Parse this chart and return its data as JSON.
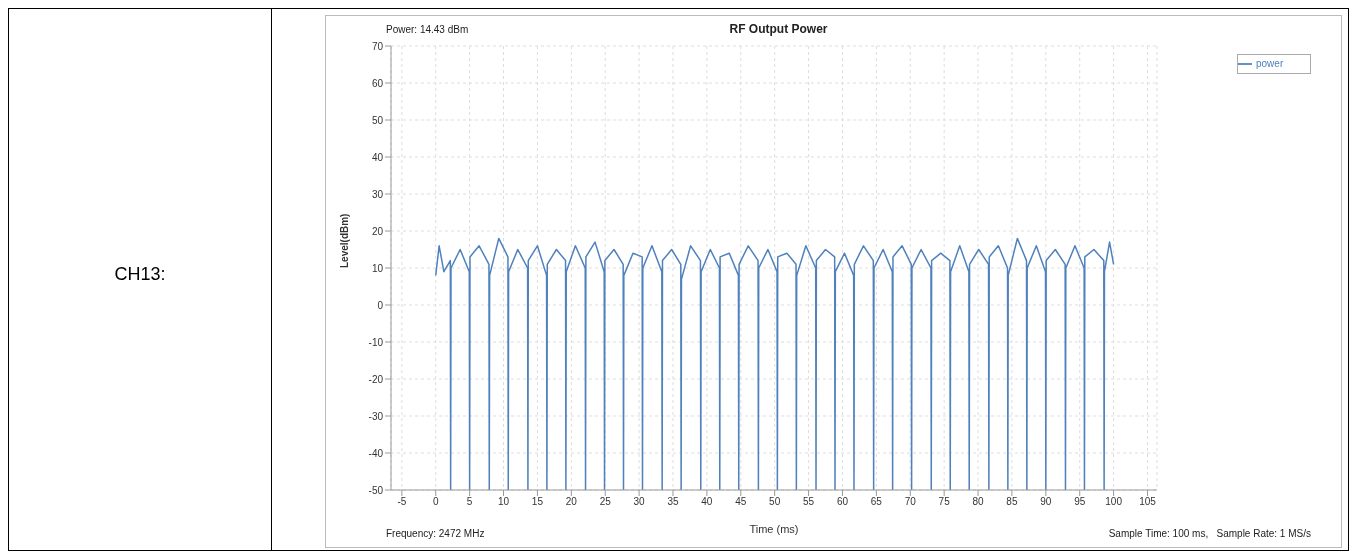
{
  "chart_data": {
    "type": "line",
    "title": "RF Output Power",
    "xlabel": "Time (ms)",
    "ylabel": "Level(dBm)",
    "annotations": [
      "CH13:",
      "Power: 14.43 dBm",
      "Frequency: 2472 MHz",
      "Sample Time: 100 ms,   Sample Rate: 1 MS/s"
    ],
    "xlim": [
      -6.6,
      106.4
    ],
    "xticks": [
      -5,
      0,
      5,
      10,
      15,
      20,
      25,
      30,
      35,
      40,
      45,
      50,
      55,
      60,
      65,
      70,
      75,
      80,
      85,
      90,
      95,
      100,
      105
    ],
    "ylim": [
      -50,
      70
    ],
    "yticks": [
      -50,
      -40,
      -30,
      -20,
      -10,
      0,
      10,
      20,
      30,
      40,
      50,
      60,
      70
    ],
    "grid": true,
    "legend": "top right",
    "marker": "none",
    "line_style": "solid",
    "series": [
      {
        "name": "power",
        "color": "#4f81bd",
        "x": [
          0,
          0.5,
          1.2,
          2.15,
          2.2,
          2.25,
          3.6,
          4.95,
          5.0,
          5.05,
          6.4,
          7.85,
          7.9,
          7.95,
          9.3,
          10.65,
          10.7,
          10.75,
          12.1,
          13.55,
          13.6,
          13.65,
          15.0,
          16.35,
          16.4,
          16.45,
          17.8,
          19.15,
          19.2,
          19.25,
          20.6,
          22.05,
          22.1,
          22.15,
          23.5,
          24.85,
          24.9,
          24.95,
          26.3,
          27.65,
          27.7,
          27.75,
          29.1,
          30.45,
          30.5,
          30.55,
          31.9,
          33.35,
          33.4,
          33.45,
          34.8,
          36.15,
          36.2,
          36.25,
          37.6,
          39.05,
          39.1,
          39.15,
          40.5,
          41.85,
          41.9,
          41.95,
          43.3,
          44.65,
          44.7,
          44.75,
          46.1,
          47.55,
          47.6,
          47.65,
          49.0,
          50.35,
          50.4,
          50.45,
          51.8,
          53.15,
          53.2,
          53.25,
          54.6,
          56.05,
          56.1,
          56.15,
          57.5,
          58.85,
          58.9,
          58.95,
          60.3,
          61.65,
          61.7,
          61.75,
          63.1,
          64.55,
          64.6,
          64.65,
          66.0,
          67.35,
          67.4,
          67.45,
          68.8,
          70.15,
          70.2,
          70.25,
          71.6,
          73.05,
          73.1,
          73.15,
          74.5,
          75.85,
          75.9,
          75.95,
          77.3,
          78.65,
          78.7,
          78.75,
          80.1,
          81.55,
          81.6,
          81.65,
          83.0,
          84.35,
          84.4,
          84.45,
          85.8,
          87.15,
          87.2,
          87.25,
          88.6,
          89.95,
          90.0,
          90.05,
          91.4,
          92.85,
          92.9,
          92.95,
          94.3,
          95.65,
          95.7,
          95.75,
          97.1,
          98.55,
          98.6,
          98.65,
          99.4,
          100
        ],
        "values": [
          8,
          16,
          9,
          12,
          -50,
          10,
          15,
          9,
          -50,
          13,
          16,
          11,
          -50,
          8,
          18,
          13,
          -50,
          9,
          15,
          10,
          -50,
          12,
          16,
          8,
          -50,
          11,
          15,
          12,
          -50,
          9,
          16,
          10,
          -50,
          13,
          17,
          9,
          -50,
          12,
          15,
          11,
          -50,
          8,
          14,
          13,
          -50,
          10,
          16,
          9,
          -50,
          12,
          15,
          11,
          -50,
          7,
          16,
          12,
          -50,
          9,
          15,
          10,
          -50,
          13,
          14,
          8,
          -50,
          11,
          16,
          12,
          -50,
          10,
          15,
          9,
          -50,
          13,
          14,
          11,
          -50,
          8,
          16,
          10,
          -50,
          12,
          15,
          13,
          -50,
          9,
          14,
          8,
          -50,
          11,
          16,
          12,
          -50,
          10,
          15,
          9,
          -50,
          13,
          16,
          11,
          -50,
          10,
          15,
          10,
          -50,
          12,
          14,
          12,
          -50,
          9,
          16,
          9,
          -50,
          11,
          15,
          11,
          -50,
          13,
          16,
          10,
          -50,
          8,
          18,
          12,
          -50,
          10,
          16,
          9,
          -50,
          12,
          15,
          11,
          -50,
          10,
          16,
          10,
          -50,
          13,
          15,
          12,
          -50,
          9,
          17,
          11
        ]
      }
    ]
  }
}
